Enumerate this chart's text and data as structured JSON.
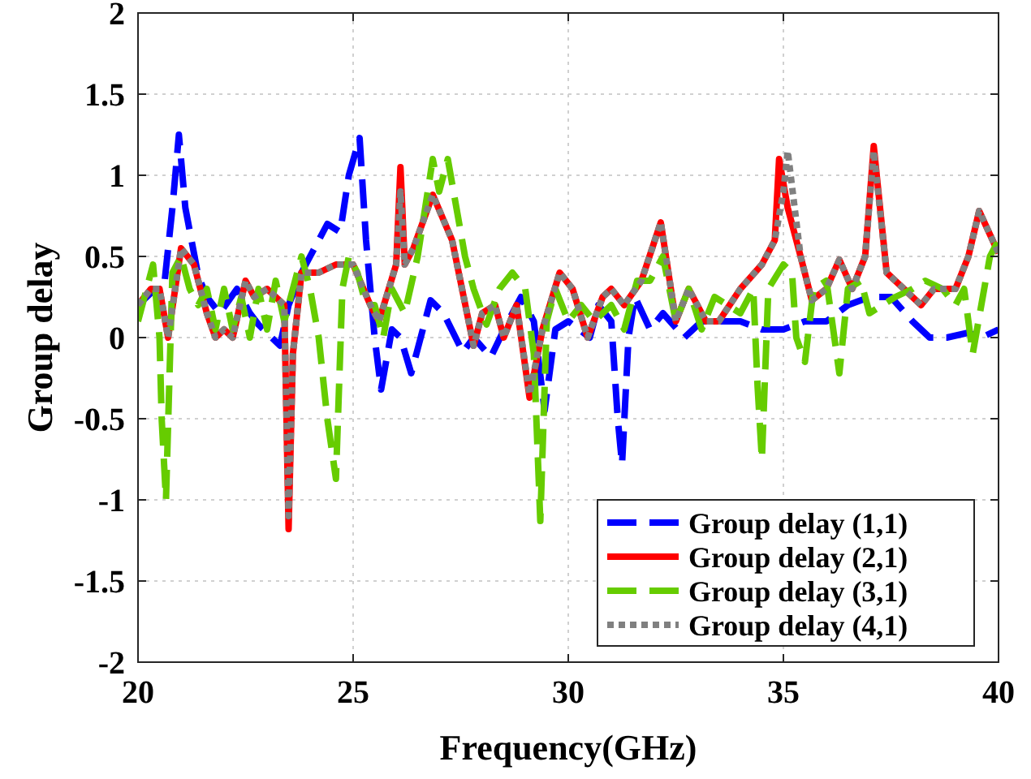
{
  "chart_data": {
    "type": "line",
    "xlabel": "Frequency(GHz)",
    "ylabel": "Group delay",
    "xlim": [
      20,
      40
    ],
    "ylim": [
      -2,
      2
    ],
    "xticks": [
      20,
      25,
      30,
      35,
      40
    ],
    "yticks": [
      -2,
      -1.5,
      -1,
      -0.5,
      0,
      0.5,
      1,
      1.5,
      2
    ],
    "grid": true,
    "legend": "bottom right",
    "series": [
      {
        "name": "Group delay (1,1)",
        "color": "#0000ff",
        "line_style": "dashed",
        "x": [
          20,
          20.4,
          20.6,
          20.8,
          20.95,
          21.1,
          21.4,
          21.6,
          21.9,
          22.3,
          22.6,
          22.8,
          23.3,
          23.5,
          23.8,
          24.2,
          24.4,
          24.7,
          24.9,
          25.15,
          25.3,
          25.5,
          25.65,
          25.9,
          26.1,
          26.35,
          26.8,
          27.1,
          27.55,
          27.8,
          28.2,
          28.6,
          28.9,
          29.2,
          29.45,
          29.7,
          30,
          30.5,
          30.7,
          31,
          31.15,
          31.25,
          31.4,
          31.55,
          31.9,
          32.2,
          32.7,
          33.1,
          33.5,
          34,
          34.5,
          35,
          35.5,
          36,
          36.5,
          37,
          37.5,
          38,
          38.4,
          38.8,
          39.3,
          39.6,
          40
        ],
        "values": [
          0.2,
          0.3,
          0.3,
          0.8,
          1.25,
          0.8,
          0.38,
          0.25,
          0.15,
          0.3,
          0.15,
          0.08,
          -0.05,
          0.2,
          0.4,
          0.6,
          0.7,
          0.65,
          1.0,
          1.23,
          0.6,
          0.0,
          -0.32,
          0.05,
          0.0,
          -0.22,
          0.23,
          0.15,
          -0.09,
          0.0,
          -0.12,
          0.1,
          0.25,
          0.1,
          -0.45,
          0.05,
          0.1,
          0.0,
          0.2,
          0.1,
          -0.5,
          -0.78,
          0.0,
          0.25,
          0.05,
          0.15,
          0.0,
          0.1,
          0.1,
          0.1,
          0.05,
          0.05,
          0.1,
          0.1,
          0.2,
          0.25,
          0.25,
          0.1,
          0.0,
          0.0,
          0.03,
          0.0,
          0.05
        ]
      },
      {
        "name": "Group delay (2,1)",
        "color": "#ff0000",
        "line_style": "solid",
        "x": [
          20,
          20.3,
          20.5,
          20.7,
          21,
          21.3,
          21.6,
          21.8,
          22,
          22.2,
          22.5,
          22.7,
          23,
          23.2,
          23.4,
          23.5,
          23.6,
          23.8,
          24.2,
          24.6,
          25,
          25.4,
          25.6,
          26,
          26.1,
          26.2,
          26.4,
          26.85,
          27.3,
          27.8,
          28,
          28.3,
          28.5,
          28.8,
          29.1,
          29.4,
          29.8,
          30.1,
          30.45,
          30.8,
          31,
          31.3,
          31.7,
          32.15,
          32.5,
          32.8,
          33.2,
          33.5,
          34,
          34.5,
          34.8,
          34.9,
          35.1,
          35.4,
          35.66,
          36,
          36.3,
          36.6,
          36.9,
          37.1,
          37.4,
          37.8,
          38.2,
          38.5,
          39,
          39.3,
          39.55,
          40
        ],
        "values": [
          0.2,
          0.3,
          0.3,
          0.0,
          0.55,
          0.45,
          0.15,
          0.0,
          0.05,
          0.0,
          0.35,
          0.25,
          0.3,
          0.25,
          0.2,
          -1.18,
          -0.1,
          0.4,
          0.4,
          0.45,
          0.45,
          0.2,
          0.1,
          0.45,
          1.05,
          0.45,
          0.55,
          0.88,
          0.6,
          -0.05,
          0.15,
          0.2,
          0.0,
          0.2,
          -0.37,
          0.05,
          0.4,
          0.3,
          0.0,
          0.25,
          0.3,
          0.2,
          0.35,
          0.71,
          0.1,
          0.3,
          0.1,
          0.1,
          0.3,
          0.45,
          0.6,
          1.1,
          0.8,
          0.5,
          0.23,
          0.3,
          0.48,
          0.3,
          0.5,
          1.18,
          0.4,
          0.3,
          0.2,
          0.3,
          0.3,
          0.5,
          0.78,
          0.52
        ]
      },
      {
        "name": "Group delay (3,1)",
        "color": "#66cc00",
        "line_style": "dashed",
        "x": [
          20,
          20.2,
          20.35,
          20.5,
          20.55,
          20.65,
          20.8,
          21,
          21.2,
          21.4,
          21.6,
          21.8,
          22,
          22.2,
          22.4,
          22.6,
          22.8,
          23,
          23.2,
          23.4,
          23.6,
          23.8,
          24,
          24.2,
          24.4,
          24.6,
          24.75,
          24.9,
          25.1,
          25.3,
          25.5,
          25.7,
          25.9,
          26.2,
          26.5,
          26.85,
          27,
          27.2,
          27.4,
          27.6,
          27.8,
          28.1,
          28.4,
          28.7,
          29,
          29.2,
          29.35,
          29.5,
          29.7,
          30,
          30.3,
          30.6,
          31,
          31.3,
          31.6,
          31.9,
          32.2,
          32.5,
          32.8,
          33.1,
          33.4,
          33.7,
          34,
          34.3,
          34.4,
          34.5,
          34.65,
          35,
          35.2,
          35.3,
          35.5,
          35.7,
          36,
          36.3,
          36.5,
          36.8,
          37,
          37.3,
          37.6,
          38,
          38.3,
          38.7,
          39,
          39.2,
          39.4,
          39.6,
          39.8,
          40
        ],
        "values": [
          0.1,
          0.3,
          0.45,
          0.0,
          -0.5,
          -1.0,
          0.4,
          0.5,
          0.3,
          0.2,
          0.3,
          0.05,
          0.3,
          0.05,
          0.25,
          0.0,
          0.3,
          0.05,
          0.35,
          0.1,
          0.3,
          0.5,
          0.3,
          0.0,
          -0.5,
          -0.87,
          0.3,
          0.5,
          0.4,
          0.2,
          0.2,
          0.0,
          0.3,
          0.15,
          0.5,
          1.1,
          0.9,
          1.1,
          0.8,
          0.5,
          0.3,
          0.08,
          0.3,
          0.4,
          0.3,
          -0.1,
          -1.13,
          0.1,
          0.3,
          0.1,
          0.2,
          0.1,
          0.2,
          0.05,
          0.35,
          0.35,
          0.5,
          0.1,
          0.3,
          0.05,
          0.25,
          0.2,
          0.15,
          0.3,
          -0.3,
          -0.75,
          0.3,
          0.45,
          0.4,
          0.0,
          -0.15,
          0.3,
          0.35,
          -0.22,
          0.3,
          0.35,
          0.15,
          0.2,
          0.25,
          0.3,
          0.35,
          0.3,
          0.2,
          0.3,
          -0.1,
          0.2,
          0.5,
          0.6
        ]
      },
      {
        "name": "Group delay (4,1)",
        "color": "#808080",
        "line_style": "dotted",
        "x": [
          20,
          20.3,
          20.5,
          20.7,
          21,
          21.3,
          21.6,
          21.8,
          22,
          22.2,
          22.5,
          22.7,
          23,
          23.2,
          23.4,
          23.5,
          23.6,
          23.8,
          24.2,
          24.6,
          25,
          25.4,
          25.6,
          26,
          26.1,
          26.2,
          26.4,
          26.85,
          27.3,
          27.8,
          28,
          28.3,
          28.5,
          28.8,
          29.1,
          29.4,
          29.8,
          30.1,
          30.45,
          30.8,
          31,
          31.3,
          31.7,
          32.15,
          32.5,
          32.8,
          33.2,
          33.5,
          34,
          34.5,
          34.8,
          35,
          35.1,
          35.4,
          35.66,
          36,
          36.3,
          36.6,
          36.9,
          37.1,
          37.4,
          37.8,
          38.2,
          38.5,
          39,
          39.3,
          39.55,
          40
        ],
        "values": [
          0.2,
          0.3,
          0.3,
          0.0,
          0.55,
          0.45,
          0.15,
          0.0,
          0.05,
          0.0,
          0.35,
          0.25,
          0.3,
          0.25,
          0.2,
          -1.1,
          -0.1,
          0.4,
          0.4,
          0.45,
          0.45,
          0.2,
          0.1,
          0.45,
          0.9,
          0.45,
          0.55,
          0.88,
          0.6,
          -0.05,
          0.15,
          0.2,
          0.0,
          0.2,
          -0.35,
          0.05,
          0.4,
          0.3,
          0.0,
          0.25,
          0.3,
          0.2,
          0.35,
          0.71,
          0.1,
          0.3,
          0.1,
          0.1,
          0.3,
          0.45,
          0.6,
          0.9,
          1.15,
          0.5,
          0.23,
          0.3,
          0.48,
          0.3,
          0.5,
          1.15,
          0.4,
          0.3,
          0.2,
          0.3,
          0.3,
          0.5,
          0.78,
          0.52
        ]
      }
    ]
  }
}
